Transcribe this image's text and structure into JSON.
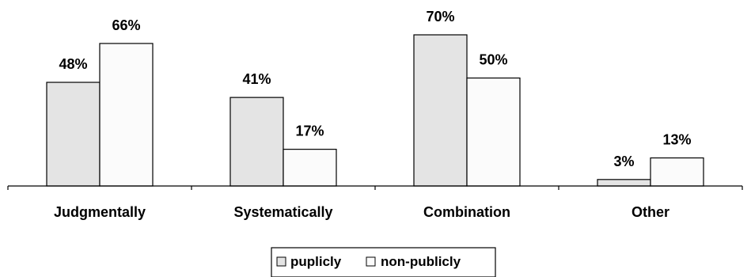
{
  "chart_data": {
    "type": "bar",
    "categories": [
      "Judgmentally",
      "Systematically",
      "Combination",
      "Other"
    ],
    "series": [
      {
        "name": "puplicly",
        "values": [
          48,
          41,
          70,
          3
        ],
        "labels": [
          "48%",
          "41%",
          "70%",
          "3%"
        ],
        "color": "#e4e4e4"
      },
      {
        "name": "non-publicly",
        "values": [
          66,
          17,
          50,
          13
        ],
        "labels": [
          "66%",
          "17%",
          "50%",
          "13%"
        ],
        "color": "#fbfbfb"
      }
    ],
    "title": "",
    "xlabel": "",
    "ylabel": "",
    "ylim": [
      0,
      70
    ],
    "grid": false,
    "legend_position": "bottom-center"
  }
}
